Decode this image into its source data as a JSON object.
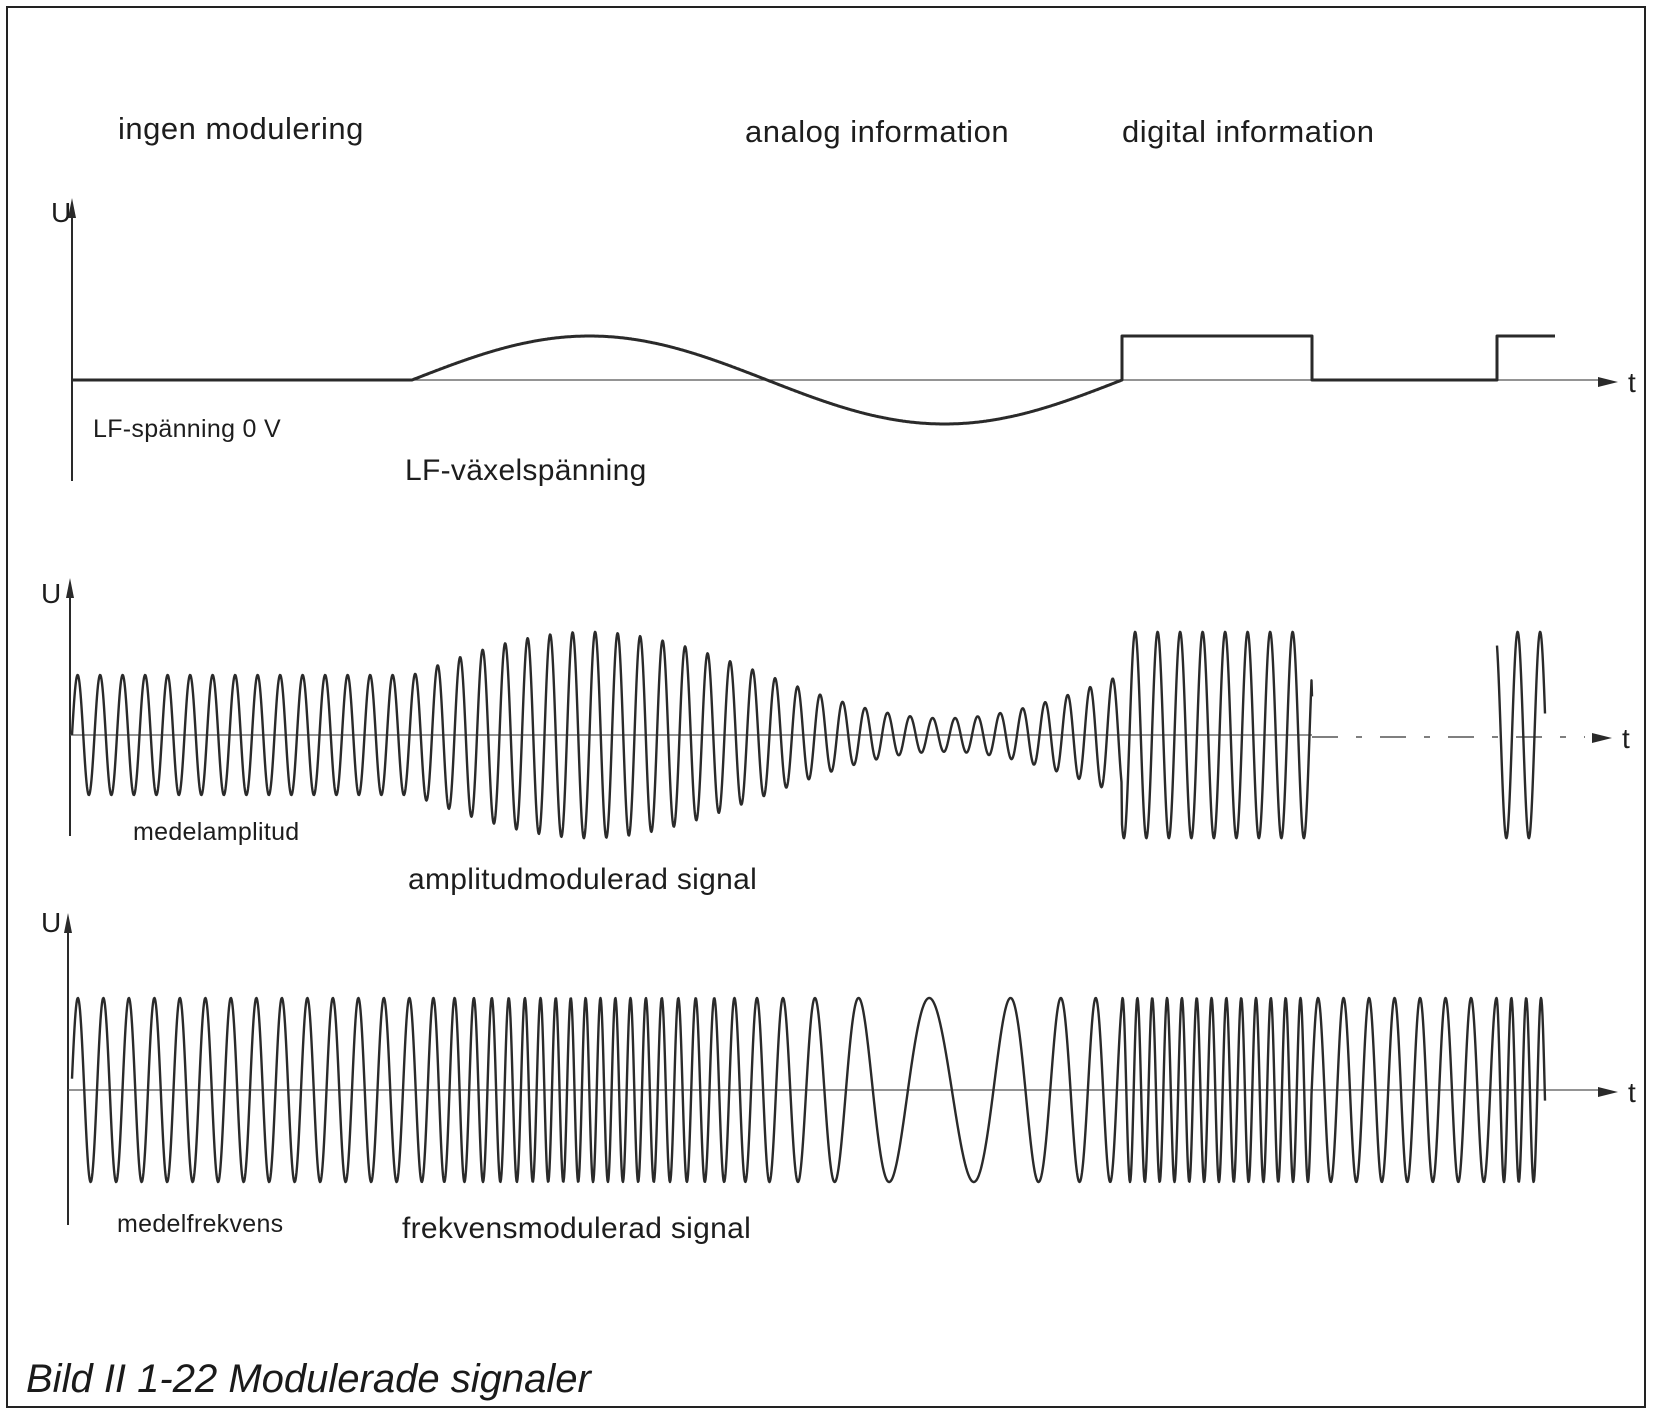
{
  "column_headers": {
    "no_modulation": "ingen modulering",
    "analog": "analog information",
    "digital": "digital information"
  },
  "axes": {
    "voltage": "U",
    "time": "t"
  },
  "lf_panel": {
    "zero_label": "LF-spänning 0 V",
    "ac_label": "LF-växelspänning"
  },
  "am_panel": {
    "mean_label": "medelamplitud",
    "signal_label": "amplitudmodulerad signal"
  },
  "fm_panel": {
    "mean_label": "medelfrekvens",
    "signal_label": "frekvensmodulerad signal"
  },
  "caption": "Bild II 1-22  Modulerade signaler"
}
